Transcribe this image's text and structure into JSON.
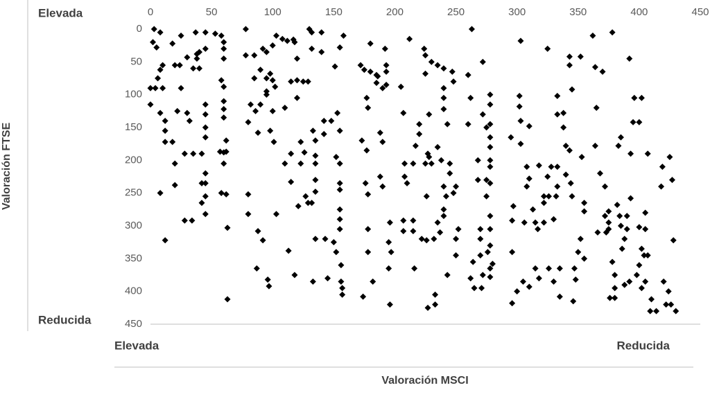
{
  "chart_data": {
    "type": "scatter",
    "x_label": "Valoración MSCI",
    "y_label": "Valoración FTSE",
    "x_axis_ends": [
      "Elevada",
      "Reducida"
    ],
    "y_axis_ends": [
      "Elevada",
      "Reducida"
    ],
    "color": "#000000",
    "xlim": [
      0,
      450
    ],
    "xticks": [
      0,
      50,
      100,
      150,
      200,
      250,
      300,
      350,
      400,
      450
    ],
    "ylim": [
      450,
      0
    ],
    "yticks": [
      0,
      50,
      100,
      150,
      200,
      250,
      300,
      350,
      400,
      450
    ],
    "x": [
      3,
      8,
      2,
      5,
      10,
      8,
      6,
      4,
      0,
      10,
      0,
      8,
      12,
      12,
      12,
      18,
      8,
      12,
      18,
      20,
      24,
      25,
      22,
      20,
      20,
      25,
      28,
      28,
      30,
      30,
      32,
      34,
      35,
      35,
      37,
      38,
      38,
      40,
      40,
      42,
      42,
      42,
      45,
      45,
      45,
      45,
      45,
      45,
      45,
      45,
      45,
      45,
      53,
      58,
      58,
      60,
      57,
      60,
      58,
      60,
      60,
      60,
      60,
      60,
      60,
      62,
      62,
      60,
      62,
      63,
      63,
      78,
      78,
      80,
      82,
      80,
      80,
      85,
      85,
      86,
      88,
      88,
      87,
      90,
      92,
      90,
      92,
      95,
      95,
      95,
      95,
      98,
      98,
      97,
      96,
      100,
      100,
      100,
      101,
      102,
      103,
      103,
      108,
      110,
      110,
      112,
      113,
      115,
      115,
      115,
      117,
      118,
      118,
      120,
      120,
      120,
      121,
      123,
      123,
      125,
      126,
      127,
      129,
      129,
      130,
      132,
      132,
      132,
      133,
      133,
      135,
      135,
      135,
      135,
      135,
      135,
      140,
      140,
      142,
      142,
      143,
      145,
      148,
      150,
      151,
      152,
      152,
      153,
      155,
      155,
      155,
      155,
      155,
      155,
      155,
      155,
      156,
      156,
      157,
      157,
      158,
      172,
      173,
      174,
      175,
      176,
      177,
      177,
      178,
      178,
      178,
      178,
      180,
      180,
      182,
      185,
      185,
      186,
      188,
      190,
      190,
      188,
      190,
      192,
      193,
      193,
      193,
      195,
      195,
      196,
      196,
      197,
      205,
      207,
      208,
      208,
      207,
      207,
      210,
      212,
      215,
      215,
      215,
      216,
      217,
      220,
      220,
      222,
      224,
      225,
      225,
      225,
      226,
      226,
      227,
      227,
      228,
      228,
      230,
      230,
      232,
      233,
      233,
      235,
      235,
      235,
      237,
      238,
      240,
      240,
      240,
      240,
      240,
      240,
      240,
      242,
      243,
      243,
      245,
      245,
      247,
      248,
      248,
      250,
      250,
      252,
      250,
      260,
      262,
      260,
      262,
      264,
      265,
      263,
      268,
      268,
      270,
      270,
      270,
      271,
      272,
      272,
      272,
      275,
      275,
      275,
      276,
      278,
      278,
      278,
      278,
      278,
      278,
      278,
      278,
      278,
      278,
      278,
      278,
      278,
      280,
      295,
      296,
      296,
      296,
      297,
      300,
      302,
      302,
      303,
      303,
      303,
      305,
      306,
      308,
      308,
      310,
      310,
      310,
      313,
      315,
      315,
      317,
      318,
      318,
      322,
      322,
      322,
      325,
      326,
      326,
      325,
      328,
      330,
      330,
      332,
      333,
      333,
      333,
      333,
      335,
      335,
      338,
      338,
      340,
      340,
      343,
      343,
      343,
      344,
      345,
      345,
      346,
      347,
      348,
      350,
      352,
      352,
      353,
      355,
      355,
      355,
      362,
      364,
      365,
      364,
      366,
      368,
      370,
      372,
      372,
      373,
      375,
      375,
      375,
      376,
      378,
      378,
      380,
      380,
      380,
      382,
      383,
      384,
      385,
      385,
      386,
      388,
      388,
      390,
      390,
      392,
      392,
      393,
      393,
      395,
      396,
      398,
      400,
      400,
      400,
      402,
      402,
      402,
      404,
      405,
      405,
      405,
      407,
      407,
      409,
      410,
      414,
      418,
      419,
      420,
      422,
      424,
      425,
      426,
      427,
      428,
      430
    ],
    "values": [
      0,
      5,
      20,
      28,
      55,
      62,
      75,
      90,
      90,
      90,
      115,
      128,
      140,
      155,
      172,
      172,
      250,
      322,
      22,
      55,
      55,
      10,
      125,
      205,
      238,
      90,
      190,
      292,
      43,
      128,
      140,
      292,
      190,
      60,
      5,
      45,
      38,
      35,
      60,
      190,
      265,
      235,
      5,
      30,
      115,
      130,
      150,
      165,
      220,
      235,
      255,
      282,
      7,
      10,
      78,
      88,
      187,
      188,
      250,
      20,
      30,
      45,
      110,
      122,
      135,
      170,
      187,
      205,
      252,
      303,
      412,
      0,
      40,
      142,
      115,
      252,
      282,
      40,
      75,
      125,
      158,
      308,
      365,
      62,
      30,
      115,
      322,
      35,
      75,
      95,
      100,
      68,
      155,
      392,
      382,
      25,
      78,
      125,
      172,
      88,
      10,
      282,
      15,
      120,
      205,
      18,
      338,
      80,
      233,
      190,
      16,
      375,
      20,
      45,
      105,
      78,
      270,
      172,
      205,
      80,
      188,
      255,
      80,
      265,
      0,
      5,
      30,
      265,
      385,
      155,
      170,
      320,
      205,
      230,
      248,
      193,
      5,
      35,
      140,
      160,
      320,
      380,
      140,
      325,
      57,
      195,
      340,
      128,
      28,
      155,
      205,
      245,
      235,
      275,
      290,
      305,
      360,
      385,
      395,
      405,
      10,
      55,
      170,
      408,
      62,
      235,
      185,
      105,
      120,
      252,
      305,
      340,
      22,
      65,
      385,
      82,
      70,
      72,
      158,
      90,
      172,
      225,
      240,
      30,
      55,
      65,
      85,
      325,
      365,
      420,
      295,
      340,
      88,
      128,
      205,
      225,
      292,
      308,
      235,
      15,
      292,
      308,
      205,
      365,
      178,
      145,
      160,
      320,
      30,
      40,
      68,
      205,
      255,
      322,
      190,
      425,
      130,
      195,
      205,
      50,
      320,
      405,
      420,
      55,
      295,
      180,
      310,
      200,
      60,
      90,
      105,
      122,
      240,
      275,
      285,
      255,
      145,
      375,
      205,
      220,
      65,
      80,
      250,
      320,
      345,
      305,
      240,
      70,
      105,
      145,
      380,
      355,
      395,
      0,
      200,
      230,
      305,
      320,
      345,
      395,
      50,
      130,
      375,
      150,
      230,
      255,
      340,
      100,
      115,
      145,
      165,
      180,
      200,
      210,
      235,
      285,
      305,
      330,
      365,
      378,
      358,
      165,
      292,
      340,
      418,
      270,
      400,
      102,
      118,
      18,
      140,
      175,
      385,
      295,
      210,
      240,
      148,
      228,
      393,
      275,
      295,
      365,
      305,
      208,
      380,
      265,
      295,
      255,
      30,
      365,
      255,
      225,
      210,
      290,
      385,
      255,
      102,
      130,
      210,
      240,
      365,
      408,
      128,
      150,
      178,
      222,
      185,
      55,
      42,
      235,
      92,
      255,
      415,
      365,
      382,
      340,
      42,
      320,
      195,
      265,
      278,
      350,
      10,
      58,
      120,
      178,
      310,
      220,
      65,
      240,
      285,
      310,
      278,
      295,
      305,
      410,
      5,
      355,
      375,
      395,
      410,
      268,
      178,
      285,
      165,
      300,
      335,
      320,
      390,
      285,
      305,
      45,
      385,
      190,
      258,
      142,
      105,
      375,
      142,
      302,
      360,
      105,
      335,
      395,
      345,
      280,
      305,
      385,
      190,
      345,
      430,
      412,
      430,
      240,
      210,
      385,
      420,
      400,
      195,
      420,
      230,
      322,
      430
    ]
  }
}
